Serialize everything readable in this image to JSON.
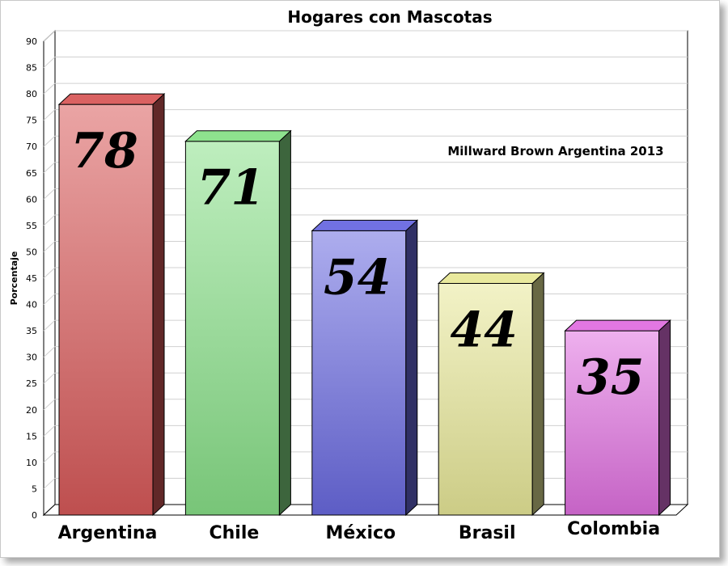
{
  "chart_data": {
    "type": "bar",
    "title": "Hogares con Mascotas",
    "ylabel": "Porcentaje",
    "xlabel": "",
    "annotation": "Millward Brown Argentina 2013",
    "categories": [
      "Argentina",
      "Chile",
      "México",
      "Brasil",
      "Colombia"
    ],
    "values": [
      78,
      71,
      54,
      44,
      35
    ],
    "data_labels": [
      "78",
      "71",
      "54",
      "44",
      "35"
    ],
    "ylim": [
      0,
      90
    ],
    "yticks": [
      0,
      5,
      10,
      15,
      20,
      25,
      30,
      35,
      40,
      45,
      50,
      55,
      60,
      65,
      70,
      75,
      80,
      85,
      90
    ],
    "grid": true,
    "legend": "none",
    "colors": [
      "#d85a5a",
      "#88e088",
      "#6a6ae0",
      "#e8e898",
      "#e070e0"
    ]
  }
}
